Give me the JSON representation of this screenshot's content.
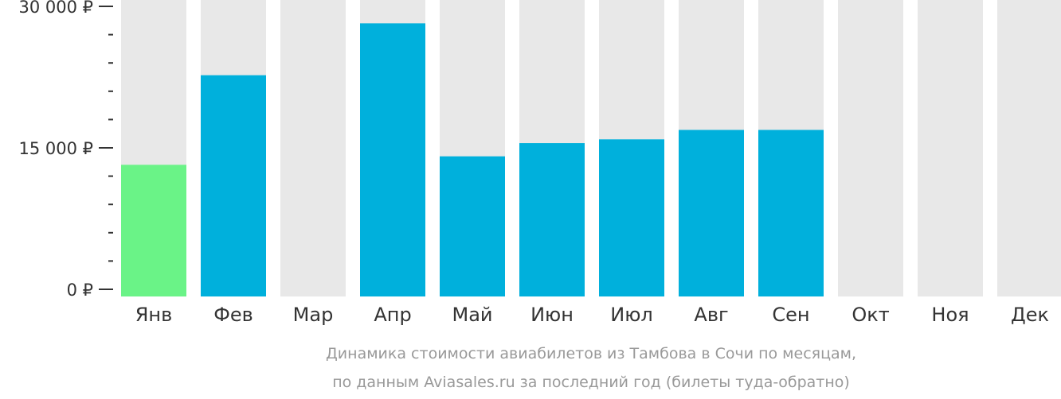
{
  "chart_data": {
    "type": "bar",
    "categories": [
      "Янв",
      "Фев",
      "Мар",
      "Апр",
      "Май",
      "Июн",
      "Июл",
      "Авг",
      "Сен",
      "Окт",
      "Ноя",
      "Дек"
    ],
    "values": [
      13200,
      22700,
      null,
      28200,
      14100,
      15500,
      15900,
      16900,
      16900,
      null,
      null,
      null
    ],
    "highlight_index": 0,
    "ylim": [
      0,
      30000
    ],
    "yticks": [
      0,
      15000,
      30000
    ],
    "ytick_labels": [
      "0 ₽",
      "15 000 ₽",
      "30 000 ₽"
    ],
    "minor_ticks_per_interval": 5,
    "caption_lines": [
      "Динамика стоимости авиабилетов из Тамбова в Сочи по месяцам,",
      "по данным Aviasales.ru за последний год (билеты туда-обратно)"
    ],
    "colors": {
      "bar": "#00b0dc",
      "highlight": "#6af387",
      "background_bar": "#e8e8e8",
      "axis": "#333333",
      "label": "#333333",
      "caption": "#999999"
    }
  }
}
